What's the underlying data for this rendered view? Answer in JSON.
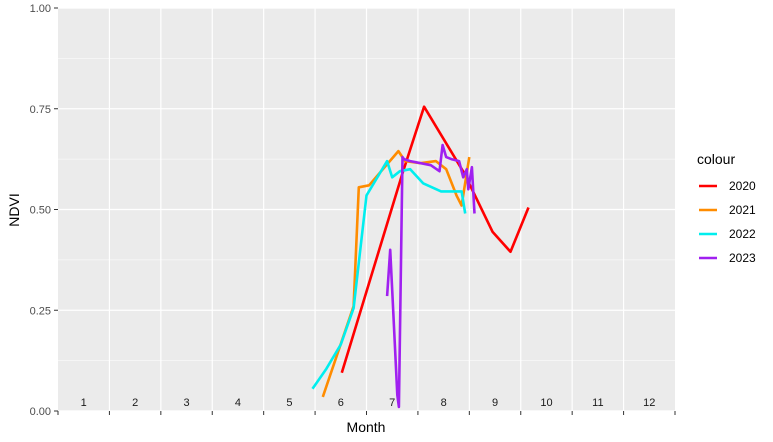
{
  "chart_data": {
    "type": "line",
    "title": "",
    "xlabel": "Month",
    "ylabel": "NDVI",
    "xlim": [
      0.5,
      12.5
    ],
    "ylim": [
      0,
      1
    ],
    "y_ticks": [
      "0.00",
      "0.25",
      "0.50",
      "0.75",
      "1.00"
    ],
    "y_tick_values": [
      0,
      0.25,
      0.5,
      0.75,
      1
    ],
    "month_labels": [
      "1",
      "2",
      "3",
      "4",
      "5",
      "6",
      "7",
      "8",
      "9",
      "10",
      "11",
      "12"
    ],
    "grid": true,
    "panel_background": "#ebebeb",
    "legend": {
      "title": "colour",
      "placement": "right"
    },
    "series": [
      {
        "name": "2020",
        "color": "#ff0000",
        "x": [
          6.02,
          7.2,
          7.62,
          8.4,
          8.95,
          9.3,
          9.65
        ],
        "y": [
          0.095,
          0.59,
          0.755,
          0.59,
          0.445,
          0.395,
          0.505
        ]
      },
      {
        "name": "2021",
        "color": "#ff8c00",
        "x": [
          5.65,
          6.25,
          6.35,
          6.55,
          7.12,
          7.25,
          7.55,
          7.85,
          8.05,
          8.25,
          8.35,
          8.5
        ],
        "y": [
          0.035,
          0.26,
          0.555,
          0.56,
          0.645,
          0.62,
          0.615,
          0.62,
          0.6,
          0.535,
          0.51,
          0.63
        ]
      },
      {
        "name": "2022",
        "color": "#00eeee",
        "x": [
          5.45,
          5.72,
          6.0,
          6.25,
          6.5,
          6.9,
          7.0,
          7.15,
          7.35,
          7.6,
          7.95,
          8.35,
          8.42
        ],
        "y": [
          0.055,
          0.105,
          0.165,
          0.255,
          0.535,
          0.62,
          0.58,
          0.595,
          0.6,
          0.565,
          0.545,
          0.545,
          0.49
        ]
      },
      {
        "name": "2023",
        "color": "#a020f0",
        "x": [
          6.9,
          6.96,
          7.0,
          7.1,
          7.13,
          7.2,
          7.23,
          7.35,
          7.75,
          7.92,
          7.98,
          8.05,
          8.15,
          8.3,
          8.38,
          8.45,
          8.48,
          8.55,
          8.6
        ],
        "y": [
          0.285,
          0.4,
          0.3,
          0.04,
          0.01,
          0.63,
          0.625,
          0.62,
          0.61,
          0.595,
          0.66,
          0.63,
          0.625,
          0.62,
          0.58,
          0.6,
          0.55,
          0.605,
          0.49
        ]
      }
    ]
  }
}
